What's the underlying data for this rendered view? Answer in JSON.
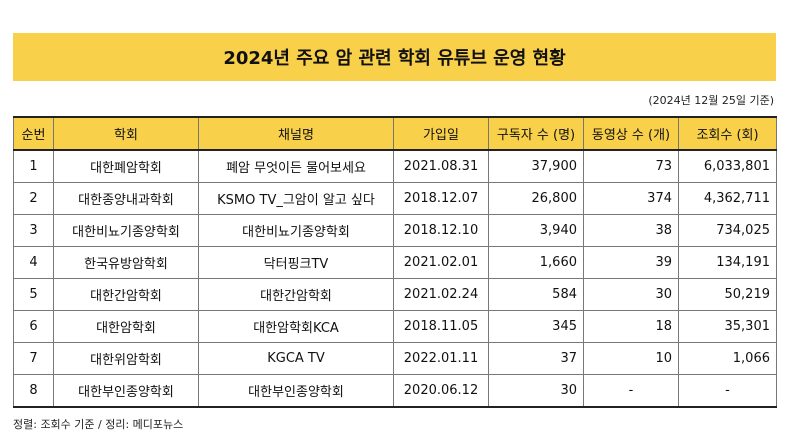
{
  "title": "2024년 주요 암 관련 학회 유튜브 운영 현황",
  "date_note": "(2024년 12월 25일 기준)",
  "table": {
    "headers": [
      "순번",
      "학회",
      "채널명",
      "가입일",
      "구독자 수 (명)",
      "동영상 수 (개)",
      "조회수 (회)"
    ],
    "rows": [
      [
        "1",
        "대한폐암학회",
        "폐암 무엇이든 물어보세요",
        "2021.08.31",
        "37,900",
        "73",
        "6,033,801"
      ],
      [
        "2",
        "대한종양내과학회",
        "KSMO TV_그암이 알고 싶다",
        "2018.12.07",
        "26,800",
        "374",
        "4,362,711"
      ],
      [
        "3",
        "대한비뇨기종양학회",
        "대한비뇨기종양학회",
        "2018.12.10",
        "3,940",
        "38",
        "734,025"
      ],
      [
        "4",
        "한국유방암학회",
        "닥터핑크TV",
        "2021.02.01",
        "1,660",
        "39",
        "134,191"
      ],
      [
        "5",
        "대한간암학회",
        "대한간암학회",
        "2021.02.24",
        "584",
        "30",
        "50,219"
      ],
      [
        "6",
        "대한암학회",
        "대한암학회KCA",
        "2018.11.05",
        "345",
        "18",
        "35,301"
      ],
      [
        "7",
        "대한위암학회",
        "KGCA TV",
        "2022.01.11",
        "37",
        "10",
        "1,066"
      ],
      [
        "8",
        "대한부인종양학회",
        "대한부인종양학회",
        "2020.06.12",
        "30",
        "-",
        "-"
      ]
    ]
  },
  "footer_note": "정렬: 조회수 기준 / 정리: 메디포뉴스",
  "colors": {
    "accent": "#f9d04a"
  }
}
